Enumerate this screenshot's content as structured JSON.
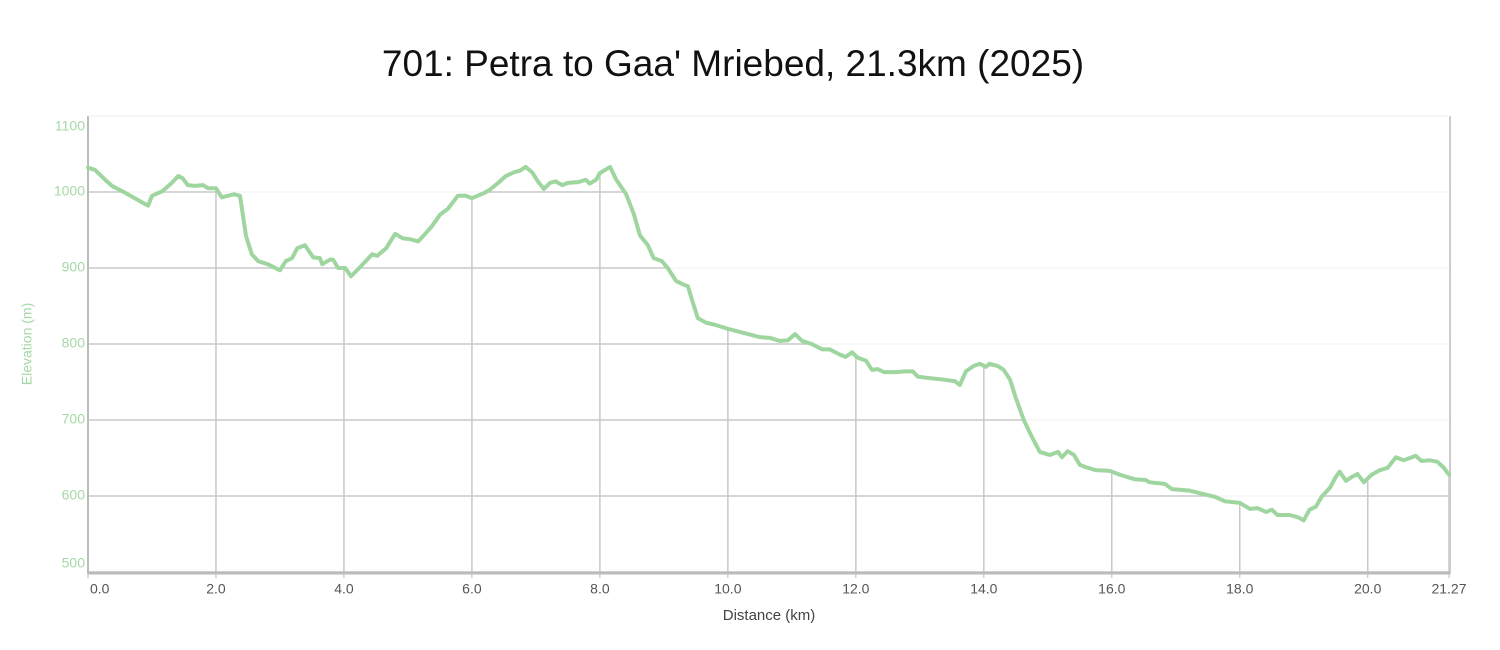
{
  "chart_data": {
    "type": "line",
    "title": "701: Petra to Gaa' Mriebed, 21.3km (2025)",
    "x_label": "Distance (km)",
    "y_label": "Elevation (m)",
    "color": "#9fd6a0",
    "grid": true,
    "x": [
      0,
      0.11,
      0.27,
      0.375,
      0.58,
      0.81,
      0.94,
      1.0,
      1.16,
      1.31,
      1.41,
      1.48,
      1.56,
      1.67,
      1.8,
      1.875,
      2.0,
      2.09,
      2.28,
      2.375,
      2.47,
      2.56,
      2.66,
      2.81,
      3.0,
      3.09,
      3.19,
      3.27,
      3.39,
      3.52,
      3.625,
      3.66,
      3.78,
      3.83,
      3.91,
      4.02,
      4.11,
      4.25,
      4.44,
      4.52,
      4.66,
      4.8,
      4.92,
      5.03,
      5.16,
      5.27,
      5.375,
      5.5,
      5.625,
      5.78,
      5.9,
      6.0,
      6.09,
      6.2,
      6.28,
      6.41,
      6.53,
      6.66,
      6.75,
      6.84,
      6.94,
      7.03,
      7.125,
      7.22,
      7.31,
      7.41,
      7.5,
      7.66,
      7.78,
      7.84,
      7.94,
      8.0,
      8.16,
      8.25,
      8.41,
      8.53,
      8.625,
      8.75,
      8.84,
      8.97,
      9.06,
      9.19,
      9.31,
      9.375,
      9.44,
      9.53,
      9.66,
      9.81,
      10.0,
      10.27,
      10.5,
      10.66,
      10.81,
      10.94,
      11.05,
      11.16,
      11.31,
      11.47,
      11.59,
      11.75,
      11.84,
      11.94,
      12.03,
      12.16,
      12.25,
      12.34,
      12.44,
      12.625,
      12.77,
      12.89,
      12.97,
      13.16,
      13.39,
      13.55,
      13.625,
      13.72,
      13.84,
      13.94,
      14.03,
      14.09,
      14.22,
      14.31,
      14.41,
      14.5,
      14.625,
      14.75,
      14.875,
      15.03,
      15.16,
      15.22,
      15.31,
      15.41,
      15.5,
      15.59,
      15.75,
      15.97,
      16.125,
      16.36,
      16.53,
      16.59,
      16.83,
      16.94,
      17.22,
      17.41,
      17.61,
      17.77,
      18.0,
      18.16,
      18.28,
      18.41,
      18.5,
      18.59,
      18.78,
      18.91,
      19.0,
      19.09,
      19.19,
      19.28,
      19.41,
      19.5,
      19.56,
      19.66,
      19.75,
      19.84,
      19.94,
      20.06,
      20.19,
      20.31,
      20.44,
      20.56,
      20.66,
      20.75,
      20.84,
      20.97,
      21.09,
      21.19,
      21.27
    ],
    "values": [
      1032,
      1029,
      1016,
      1008,
      999,
      988,
      982,
      995,
      1001,
      1012,
      1021,
      1018,
      1009,
      1008,
      1009,
      1005,
      1005,
      993,
      997,
      995,
      942,
      918,
      909,
      905,
      897,
      909,
      913,
      926,
      930,
      914,
      913,
      905,
      911,
      911,
      900,
      900,
      889,
      901,
      918,
      916,
      926,
      945,
      939,
      938,
      935,
      945,
      955,
      970,
      978,
      995,
      995,
      992,
      995,
      999,
      1003,
      1012,
      1021,
      1026,
      1028,
      1033,
      1026,
      1014,
      1004,
      1012,
      1014,
      1009,
      1012,
      1013,
      1016,
      1011,
      1016,
      1025,
      1033,
      1017,
      997,
      971,
      943,
      930,
      913,
      909,
      900,
      883,
      878,
      876,
      858,
      834,
      828,
      825,
      820,
      814,
      809,
      808,
      804,
      805,
      813,
      804,
      800,
      793,
      793,
      786,
      783,
      789,
      782,
      778,
      766,
      767,
      763,
      763,
      764,
      764,
      757,
      755,
      753,
      751,
      746,
      764,
      771,
      774,
      770,
      774,
      771,
      766,
      753,
      729,
      700,
      678,
      658,
      654,
      658,
      651,
      659,
      654,
      641,
      638,
      634,
      633,
      628,
      622,
      621,
      618,
      616,
      609,
      607,
      603,
      599,
      593,
      591,
      583,
      584,
      579,
      582,
      575,
      575,
      572,
      568,
      582,
      586,
      599,
      611,
      625,
      632,
      620,
      625,
      629,
      618,
      628,
      634,
      637,
      651,
      647,
      650,
      653,
      646,
      647,
      645,
      637,
      628
    ],
    "xlim": [
      0,
      21.27
    ],
    "ylim": [
      500,
      1100
    ],
    "xticks": [
      {
        "value": 0,
        "label": "0.0"
      },
      {
        "value": 2,
        "label": "2.0"
      },
      {
        "value": 4,
        "label": "4.0"
      },
      {
        "value": 6,
        "label": "6.0"
      },
      {
        "value": 8,
        "label": "8.0"
      },
      {
        "value": 10,
        "label": "10.0"
      },
      {
        "value": 12,
        "label": "12.0"
      },
      {
        "value": 14,
        "label": "14.0"
      },
      {
        "value": 16,
        "label": "16.0"
      },
      {
        "value": 18,
        "label": "18.0"
      },
      {
        "value": 20,
        "label": "20.0"
      },
      21.27
    ],
    "yticks": [
      500,
      600,
      700,
      800,
      900,
      1000,
      1100
    ]
  }
}
